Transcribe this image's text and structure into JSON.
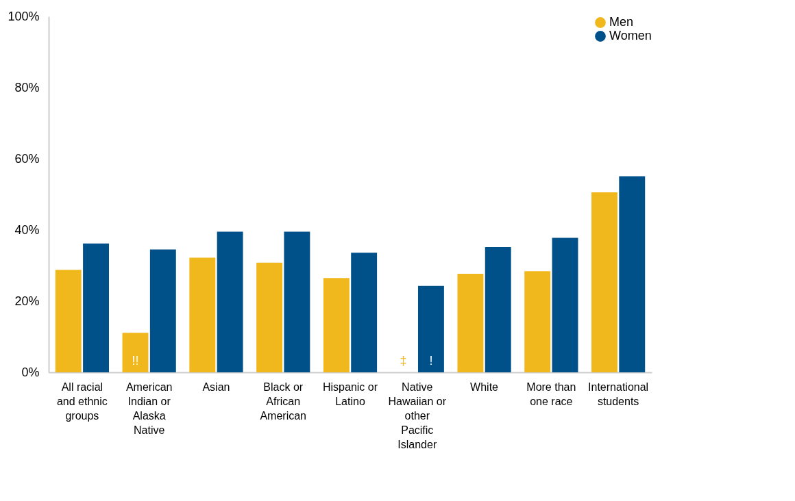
{
  "chart_data": {
    "type": "bar",
    "categories": [
      "All racial and ethnic groups",
      "American Indian or Alaska Native",
      "Asian",
      "Black or African American",
      "Hispanic or Latino",
      "Native Hawaiian or other Pacific Islander",
      "White",
      "More than one race",
      "International students"
    ],
    "series": [
      {
        "name": "Men",
        "color": "#f0b81c",
        "values": [
          28.8,
          11.1,
          32.2,
          30.8,
          26.5,
          null,
          27.7,
          28.4,
          50.6
        ]
      },
      {
        "name": "Women",
        "color": "#00508a",
        "values": [
          36.2,
          34.5,
          39.5,
          39.5,
          33.6,
          24.3,
          35.2,
          37.8,
          55.1
        ]
      }
    ],
    "ylim": [
      0,
      100
    ],
    "yticks": [
      {
        "value": 0,
        "label": "0%"
      },
      {
        "value": 20,
        "label": "20%"
      },
      {
        "value": 40,
        "label": "40%"
      },
      {
        "value": 60,
        "label": "60%"
      },
      {
        "value": 80,
        "label": "80%"
      },
      {
        "value": 100,
        "label": "100%"
      }
    ],
    "annotations": [
      {
        "text": "!!",
        "x": "American Indian or Alaska Native",
        "y": 3
      },
      {
        "text": "‡",
        "x": "Native Hawaiian or other Pacific Islander",
        "y": 3
      },
      {
        "text": "!",
        "x": "Native Hawaiian or other Pacific Islander",
        "y": 3
      }
    ],
    "grid": false,
    "legend": "top right"
  }
}
